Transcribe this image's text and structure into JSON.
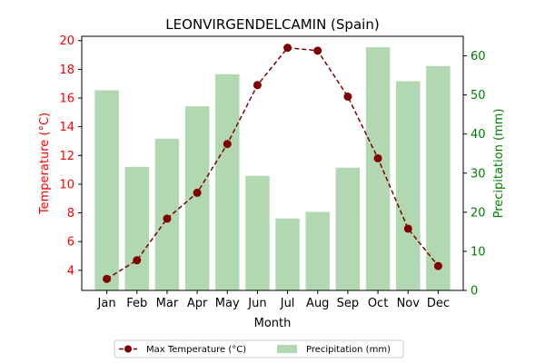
{
  "colors": {
    "temperature": "#800000",
    "temperature_axis": "#ff0000",
    "precipitation_bars": "#b2d8b2",
    "precipitation_axis": "#008000"
  },
  "chart_data": {
    "type": "bar",
    "title": "LEONVIRGENDELCAMIN (Spain)",
    "xlabel": "Month",
    "categories": [
      "Jan",
      "Feb",
      "Mar",
      "Apr",
      "May",
      "Jun",
      "Jul",
      "Aug",
      "Sep",
      "Oct",
      "Nov",
      "Dec"
    ],
    "temperature": {
      "label": "Max Temperature (°C)",
      "axis_label": "Temperature (°C)",
      "values": [
        3.4,
        4.7,
        7.6,
        9.4,
        12.8,
        16.9,
        19.5,
        19.3,
        16.1,
        11.8,
        6.9,
        4.3
      ],
      "ylim": [
        2.6,
        20.3
      ],
      "ticks": [
        4,
        6,
        8,
        10,
        12,
        14,
        16,
        18,
        20
      ],
      "line_style": "dashed",
      "marker": "circle"
    },
    "precipitation": {
      "label": "Precipitation (mm)",
      "axis_label": "Precipitation (mm)",
      "values": [
        51.2,
        31.6,
        38.8,
        47.1,
        55.3,
        29.3,
        18.4,
        20.1,
        31.4,
        62.2,
        53.5,
        57.4
      ],
      "ylim": [
        0,
        65
      ],
      "ticks": [
        0,
        10,
        20,
        30,
        40,
        50,
        60
      ]
    },
    "legend": {
      "placement": "bottom-center",
      "entries": [
        "Max Temperature (°C)",
        "Precipitation (mm)"
      ]
    },
    "grid": false
  }
}
